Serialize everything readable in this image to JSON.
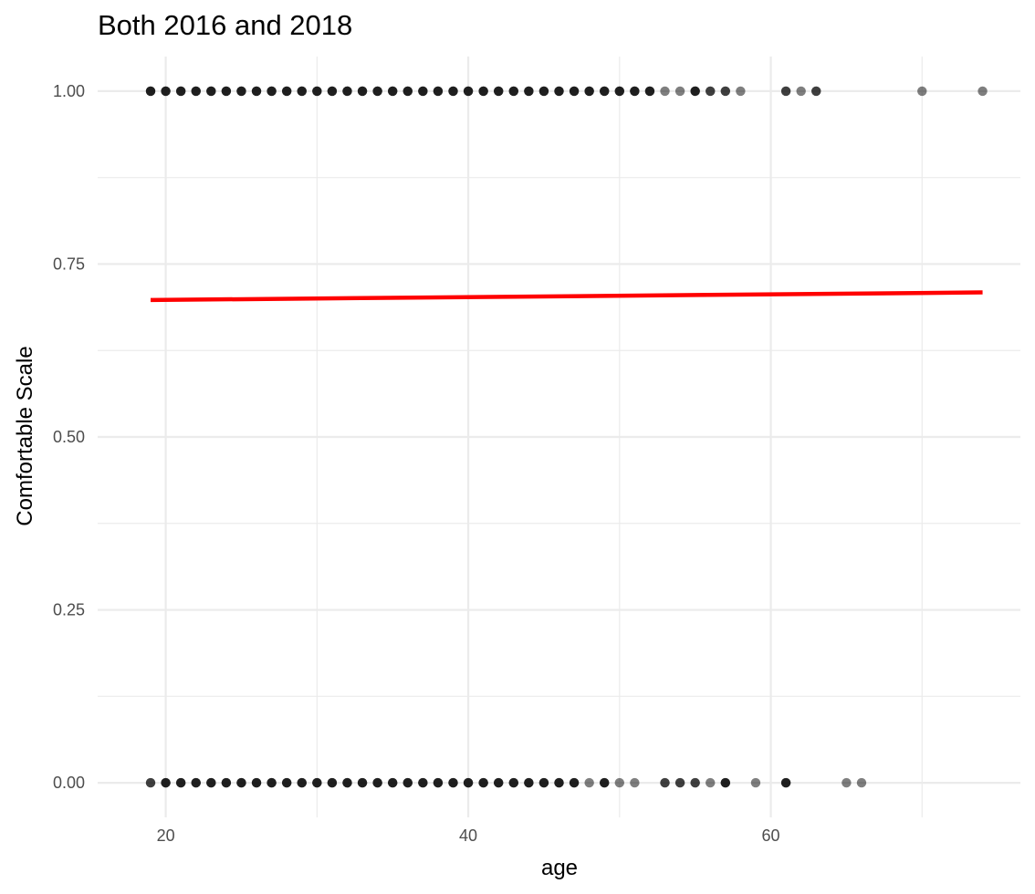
{
  "chart_data": {
    "type": "scatter",
    "title": "Both 2016 and 2018",
    "xlabel": "age",
    "ylabel": "Comfortable Scale",
    "xlim": [
      15.5,
      76.5
    ],
    "ylim": [
      -0.05,
      1.05
    ],
    "x_ticks": [
      20,
      40,
      60
    ],
    "x_tick_labels": [
      "20",
      "40",
      "60"
    ],
    "x_minor_ticks": [
      30,
      50,
      70
    ],
    "y_ticks": [
      0.0,
      0.25,
      0.5,
      0.75,
      1.0
    ],
    "y_tick_labels": [
      "0.00",
      "0.25",
      "0.50",
      "0.75",
      "1.00"
    ],
    "y_minor_ticks": [
      0.125,
      0.375,
      0.625,
      0.875
    ],
    "grid": true,
    "colors": {
      "points": "#000000",
      "fit_line": "#ff0000",
      "grid": "#ebebeb"
    },
    "point_opacity": 0.5,
    "series": [
      {
        "kind": "points",
        "points": [
          {
            "x": 19,
            "y": 1,
            "n": 3
          },
          {
            "x": 20,
            "y": 1,
            "n": 3
          },
          {
            "x": 21,
            "y": 1,
            "n": 3
          },
          {
            "x": 22,
            "y": 1,
            "n": 3
          },
          {
            "x": 23,
            "y": 1,
            "n": 3
          },
          {
            "x": 24,
            "y": 1,
            "n": 3
          },
          {
            "x": 25,
            "y": 1,
            "n": 3
          },
          {
            "x": 26,
            "y": 1,
            "n": 3
          },
          {
            "x": 27,
            "y": 1,
            "n": 3
          },
          {
            "x": 28,
            "y": 1,
            "n": 3
          },
          {
            "x": 29,
            "y": 1,
            "n": 3
          },
          {
            "x": 30,
            "y": 1,
            "n": 3
          },
          {
            "x": 31,
            "y": 1,
            "n": 3
          },
          {
            "x": 32,
            "y": 1,
            "n": 3
          },
          {
            "x": 33,
            "y": 1,
            "n": 3
          },
          {
            "x": 34,
            "y": 1,
            "n": 3
          },
          {
            "x": 35,
            "y": 1,
            "n": 3
          },
          {
            "x": 36,
            "y": 1,
            "n": 3
          },
          {
            "x": 37,
            "y": 1,
            "n": 3
          },
          {
            "x": 38,
            "y": 1,
            "n": 3
          },
          {
            "x": 39,
            "y": 1,
            "n": 3
          },
          {
            "x": 40,
            "y": 1,
            "n": 3
          },
          {
            "x": 41,
            "y": 1,
            "n": 3
          },
          {
            "x": 42,
            "y": 1,
            "n": 3
          },
          {
            "x": 43,
            "y": 1,
            "n": 3
          },
          {
            "x": 44,
            "y": 1,
            "n": 3
          },
          {
            "x": 45,
            "y": 1,
            "n": 3
          },
          {
            "x": 46,
            "y": 1,
            "n": 3
          },
          {
            "x": 47,
            "y": 1,
            "n": 3
          },
          {
            "x": 48,
            "y": 1,
            "n": 3
          },
          {
            "x": 49,
            "y": 1,
            "n": 3
          },
          {
            "x": 50,
            "y": 1,
            "n": 3
          },
          {
            "x": 51,
            "y": 1,
            "n": 3
          },
          {
            "x": 52,
            "y": 1,
            "n": 3
          },
          {
            "x": 53,
            "y": 1,
            "n": 1
          },
          {
            "x": 54,
            "y": 1,
            "n": 1
          },
          {
            "x": 55,
            "y": 1,
            "n": 3
          },
          {
            "x": 56,
            "y": 1,
            "n": 2
          },
          {
            "x": 57,
            "y": 1,
            "n": 2
          },
          {
            "x": 58,
            "y": 1,
            "n": 1
          },
          {
            "x": 61,
            "y": 1,
            "n": 2
          },
          {
            "x": 62,
            "y": 1,
            "n": 1
          },
          {
            "x": 63,
            "y": 1,
            "n": 2
          },
          {
            "x": 70,
            "y": 1,
            "n": 1
          },
          {
            "x": 74,
            "y": 1,
            "n": 1
          },
          {
            "x": 19,
            "y": 0,
            "n": 2
          },
          {
            "x": 20,
            "y": 0,
            "n": 3
          },
          {
            "x": 21,
            "y": 0,
            "n": 3
          },
          {
            "x": 22,
            "y": 0,
            "n": 3
          },
          {
            "x": 23,
            "y": 0,
            "n": 3
          },
          {
            "x": 24,
            "y": 0,
            "n": 3
          },
          {
            "x": 25,
            "y": 0,
            "n": 3
          },
          {
            "x": 26,
            "y": 0,
            "n": 3
          },
          {
            "x": 27,
            "y": 0,
            "n": 3
          },
          {
            "x": 28,
            "y": 0,
            "n": 3
          },
          {
            "x": 29,
            "y": 0,
            "n": 3
          },
          {
            "x": 30,
            "y": 0,
            "n": 3
          },
          {
            "x": 31,
            "y": 0,
            "n": 3
          },
          {
            "x": 32,
            "y": 0,
            "n": 3
          },
          {
            "x": 33,
            "y": 0,
            "n": 3
          },
          {
            "x": 34,
            "y": 0,
            "n": 3
          },
          {
            "x": 35,
            "y": 0,
            "n": 3
          },
          {
            "x": 36,
            "y": 0,
            "n": 3
          },
          {
            "x": 37,
            "y": 0,
            "n": 3
          },
          {
            "x": 38,
            "y": 0,
            "n": 3
          },
          {
            "x": 39,
            "y": 0,
            "n": 3
          },
          {
            "x": 40,
            "y": 0,
            "n": 3
          },
          {
            "x": 41,
            "y": 0,
            "n": 3
          },
          {
            "x": 42,
            "y": 0,
            "n": 3
          },
          {
            "x": 43,
            "y": 0,
            "n": 3
          },
          {
            "x": 44,
            "y": 0,
            "n": 3
          },
          {
            "x": 45,
            "y": 0,
            "n": 3
          },
          {
            "x": 46,
            "y": 0,
            "n": 3
          },
          {
            "x": 47,
            "y": 0,
            "n": 3
          },
          {
            "x": 48,
            "y": 0,
            "n": 1
          },
          {
            "x": 49,
            "y": 0,
            "n": 3
          },
          {
            "x": 50,
            "y": 0,
            "n": 1
          },
          {
            "x": 51,
            "y": 0,
            "n": 1
          },
          {
            "x": 53,
            "y": 0,
            "n": 2
          },
          {
            "x": 54,
            "y": 0,
            "n": 2
          },
          {
            "x": 55,
            "y": 0,
            "n": 2
          },
          {
            "x": 56,
            "y": 0,
            "n": 1
          },
          {
            "x": 57,
            "y": 0,
            "n": 3
          },
          {
            "x": 59,
            "y": 0,
            "n": 1
          },
          {
            "x": 61,
            "y": 0,
            "n": 3
          },
          {
            "x": 65,
            "y": 0,
            "n": 1
          },
          {
            "x": 66,
            "y": 0,
            "n": 1
          }
        ]
      },
      {
        "kind": "fit_line",
        "x": [
          19,
          74
        ],
        "y": [
          0.698,
          0.709
        ]
      }
    ]
  }
}
